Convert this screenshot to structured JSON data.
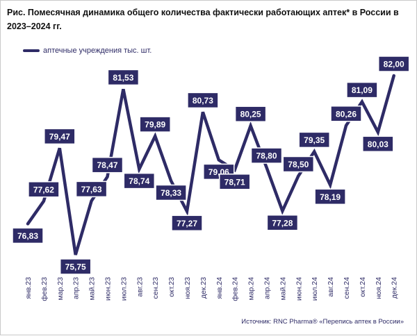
{
  "title": "Рис. Помесячная динамика общего количества фактически работающих аптек* в России в 2023–2024 гг.",
  "source": "Источник: RNC Pharma® «Перепись аптек в России»",
  "colors": {
    "line": "#2e2b66",
    "label_bg": "#2e2b66",
    "label_text": "#ffffff"
  },
  "chart_data": {
    "type": "line",
    "title": "Рис. Помесячная динамика общего количества фактически работающих аптек* в России в 2023–2024 гг.",
    "xlabel": "",
    "ylabel": "",
    "ylim": [
      75.5,
      82.2
    ],
    "grid": false,
    "legend_position": "top-left",
    "categories": [
      "янв.23",
      "фев.23",
      "мар.23",
      "апр.23",
      "май.23",
      "июн.23",
      "июл.23",
      "авг.23",
      "сен.23",
      "окт.23",
      "ноя.23",
      "дек.23",
      "янв.24",
      "фев.24",
      "мар.24",
      "апр.24",
      "май.24",
      "июн.24",
      "июл.24",
      "авг.24",
      "сен.24",
      "окт.24",
      "ноя.24",
      "дек.24"
    ],
    "series": [
      {
        "name": "аптечные учреждения тыс. шт.",
        "values": [
          76.83,
          77.62,
          79.47,
          75.75,
          77.63,
          78.47,
          81.53,
          78.74,
          79.89,
          78.33,
          77.27,
          80.73,
          79.06,
          78.71,
          80.25,
          78.8,
          77.28,
          78.5,
          79.35,
          78.19,
          80.26,
          81.09,
          80.03,
          82.0
        ],
        "labels": [
          "76,83",
          "77,62",
          "79,47",
          "75,75",
          "77,63",
          "78,47",
          "81,53",
          "78,74",
          "79,89",
          "78,33",
          "77,27",
          "80,73",
          "79,06",
          "78,71",
          "80,25",
          "78,80",
          "77,28",
          "78,50",
          "79,35",
          "78,19",
          "80,26",
          "81,09",
          "80,03",
          "82,00"
        ],
        "label_position": [
          "below",
          "above",
          "above",
          "below",
          "above",
          "above",
          "above",
          "below",
          "above",
          "below",
          "below",
          "above",
          "below",
          "below",
          "above",
          "above",
          "below",
          "above",
          "above",
          "below",
          "above",
          "above",
          "below",
          "above"
        ]
      }
    ]
  }
}
